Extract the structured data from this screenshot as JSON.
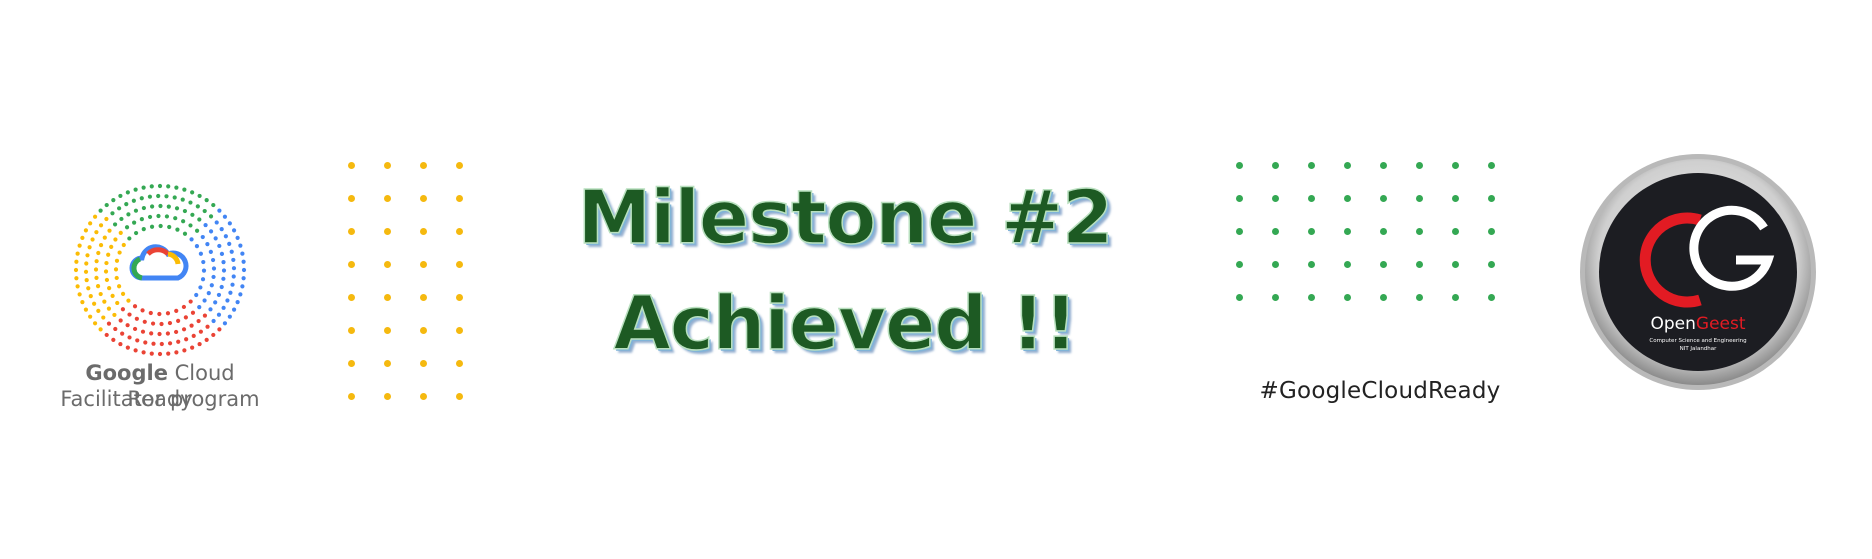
{
  "left_badge": {
    "line1_google": "Google",
    "line1_rest": " Cloud Ready",
    "line2": "Facilitator program",
    "colors": [
      "#4285f4",
      "#ea4335",
      "#fbbc05",
      "#34a853"
    ]
  },
  "title": {
    "line1": "Milestone #2",
    "line2": "Achieved !!",
    "color": "#1d5a23"
  },
  "hashtag": "#GoogleCloudReady",
  "logo": {
    "brand_open": "Open",
    "brand_geest": "Geest",
    "subtitle1": "Computer Science and Engineering",
    "subtitle2": "NIT Jalandhar",
    "accent": "#e21b23"
  },
  "decor": {
    "yellow_dot_color": "#f5b90f",
    "green_dot_color": "#34a853"
  }
}
